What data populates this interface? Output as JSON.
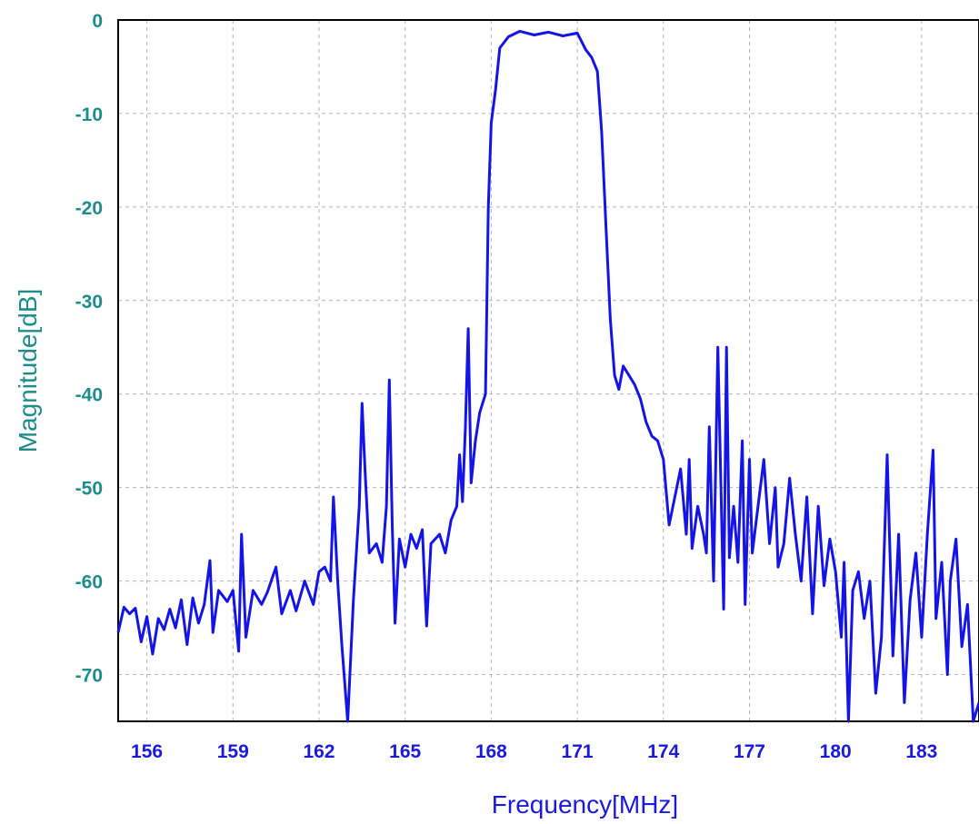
{
  "chart_data": {
    "type": "line",
    "title": "",
    "xlabel": "Frequency[MHz]",
    "ylabel": "Magnitude[dB]",
    "xlim": [
      155,
      185
    ],
    "ylim": [
      -75,
      0
    ],
    "xticks": [
      156,
      159,
      162,
      165,
      168,
      171,
      174,
      177,
      180,
      183
    ],
    "yticks": [
      0,
      -10,
      -20,
      -30,
      -40,
      -50,
      -60,
      -70
    ],
    "grid": true,
    "legend": "none",
    "colors": {
      "line": "#1414e6",
      "xtick": "#1a1adc",
      "ytick": "#1e8c8c",
      "grid": "#b4b4b4",
      "frame": "#000000"
    },
    "series": [
      {
        "values": [
          [
            155.0,
            -65.5
          ],
          [
            155.2,
            -62.8
          ],
          [
            155.4,
            -63.5
          ],
          [
            155.6,
            -62.9
          ],
          [
            155.8,
            -66.5
          ],
          [
            156.0,
            -63.8
          ],
          [
            156.2,
            -67.8
          ],
          [
            156.4,
            -64.0
          ],
          [
            156.6,
            -65.2
          ],
          [
            156.8,
            -63.0
          ],
          [
            157.0,
            -65.0
          ],
          [
            157.2,
            -62.0
          ],
          [
            157.4,
            -66.8
          ],
          [
            157.6,
            -61.8
          ],
          [
            157.8,
            -64.5
          ],
          [
            158.0,
            -62.5
          ],
          [
            158.2,
            -57.8
          ],
          [
            158.3,
            -65.5
          ],
          [
            158.5,
            -61.0
          ],
          [
            158.8,
            -62.2
          ],
          [
            159.0,
            -61.0
          ],
          [
            159.2,
            -67.5
          ],
          [
            159.3,
            -55.0
          ],
          [
            159.45,
            -66.0
          ],
          [
            159.7,
            -61.0
          ],
          [
            160.0,
            -62.5
          ],
          [
            160.2,
            -61.2
          ],
          [
            160.5,
            -58.5
          ],
          [
            160.7,
            -63.5
          ],
          [
            161.0,
            -61.0
          ],
          [
            161.2,
            -63.2
          ],
          [
            161.5,
            -60.0
          ],
          [
            161.8,
            -62.5
          ],
          [
            162.0,
            -59.0
          ],
          [
            162.2,
            -58.5
          ],
          [
            162.4,
            -60.0
          ],
          [
            162.5,
            -51.0
          ],
          [
            162.65,
            -60.0
          ],
          [
            162.8,
            -67.0
          ],
          [
            163.0,
            -76.0
          ],
          [
            163.2,
            -62.0
          ],
          [
            163.4,
            -52.0
          ],
          [
            163.5,
            -41.0
          ],
          [
            163.6,
            -48.0
          ],
          [
            163.75,
            -57.0
          ],
          [
            164.0,
            -56.0
          ],
          [
            164.2,
            -58.0
          ],
          [
            164.35,
            -52.0
          ],
          [
            164.45,
            -38.5
          ],
          [
            164.55,
            -54.0
          ],
          [
            164.65,
            -64.5
          ],
          [
            164.8,
            -55.5
          ],
          [
            165.0,
            -58.5
          ],
          [
            165.2,
            -55.0
          ],
          [
            165.4,
            -56.5
          ],
          [
            165.6,
            -54.5
          ],
          [
            165.75,
            -64.8
          ],
          [
            165.9,
            -56.0
          ],
          [
            166.2,
            -55.0
          ],
          [
            166.4,
            -57.0
          ],
          [
            166.6,
            -53.5
          ],
          [
            166.8,
            -52.0
          ],
          [
            166.9,
            -46.5
          ],
          [
            167.0,
            -51.5
          ],
          [
            167.1,
            -43.5
          ],
          [
            167.2,
            -33.0
          ],
          [
            167.3,
            -49.5
          ],
          [
            167.45,
            -45.0
          ],
          [
            167.6,
            -42.0
          ],
          [
            167.8,
            -40.0
          ],
          [
            167.9,
            -20.0
          ],
          [
            168.0,
            -11.0
          ],
          [
            168.15,
            -7.5
          ],
          [
            168.3,
            -3.0
          ],
          [
            168.6,
            -1.8
          ],
          [
            169.0,
            -1.2
          ],
          [
            169.5,
            -1.6
          ],
          [
            170.0,
            -1.3
          ],
          [
            170.5,
            -1.7
          ],
          [
            171.0,
            -1.4
          ],
          [
            171.3,
            -3.2
          ],
          [
            171.5,
            -4.0
          ],
          [
            171.7,
            -5.5
          ],
          [
            171.85,
            -12.0
          ],
          [
            172.0,
            -22.0
          ],
          [
            172.15,
            -32.0
          ],
          [
            172.3,
            -38.0
          ],
          [
            172.45,
            -39.5
          ],
          [
            172.6,
            -37.0
          ],
          [
            172.8,
            -38.0
          ],
          [
            173.0,
            -39.0
          ],
          [
            173.2,
            -40.5
          ],
          [
            173.4,
            -43.0
          ],
          [
            173.6,
            -44.5
          ],
          [
            173.8,
            -45.0
          ],
          [
            174.0,
            -47.0
          ],
          [
            174.2,
            -54.0
          ],
          [
            174.4,
            -51.0
          ],
          [
            174.6,
            -48.0
          ],
          [
            174.8,
            -55.0
          ],
          [
            174.9,
            -47.0
          ],
          [
            175.0,
            -56.5
          ],
          [
            175.2,
            -52.0
          ],
          [
            175.4,
            -55.0
          ],
          [
            175.5,
            -57.0
          ],
          [
            175.6,
            -43.5
          ],
          [
            175.75,
            -60.0
          ],
          [
            175.9,
            -35.0
          ],
          [
            176.0,
            -49.0
          ],
          [
            176.1,
            -63.0
          ],
          [
            176.2,
            -35.0
          ],
          [
            176.3,
            -57.5
          ],
          [
            176.45,
            -52.0
          ],
          [
            176.6,
            -58.0
          ],
          [
            176.75,
            -45.0
          ],
          [
            176.85,
            -62.5
          ],
          [
            177.0,
            -47.0
          ],
          [
            177.1,
            -57.0
          ],
          [
            177.3,
            -52.0
          ],
          [
            177.5,
            -47.0
          ],
          [
            177.7,
            -56.0
          ],
          [
            177.9,
            -50.0
          ],
          [
            178.0,
            -58.5
          ],
          [
            178.2,
            -56.0
          ],
          [
            178.4,
            -49.0
          ],
          [
            178.6,
            -55.0
          ],
          [
            178.8,
            -60.0
          ],
          [
            179.0,
            -51.0
          ],
          [
            179.2,
            -63.5
          ],
          [
            179.4,
            -52.0
          ],
          [
            179.6,
            -60.5
          ],
          [
            179.8,
            -55.5
          ],
          [
            180.0,
            -59.0
          ],
          [
            180.2,
            -66.0
          ],
          [
            180.3,
            -58.0
          ],
          [
            180.45,
            -75.0
          ],
          [
            180.6,
            -61.0
          ],
          [
            180.8,
            -59.0
          ],
          [
            181.0,
            -64.0
          ],
          [
            181.2,
            -60.0
          ],
          [
            181.4,
            -72.0
          ],
          [
            181.6,
            -66.0
          ],
          [
            181.8,
            -46.5
          ],
          [
            182.0,
            -68.0
          ],
          [
            182.2,
            -55.0
          ],
          [
            182.4,
            -73.0
          ],
          [
            182.6,
            -62.0
          ],
          [
            182.8,
            -57.0
          ],
          [
            183.0,
            -66.0
          ],
          [
            183.2,
            -55.0
          ],
          [
            183.4,
            -46.0
          ],
          [
            183.5,
            -64.0
          ],
          [
            183.7,
            -58.0
          ],
          [
            183.9,
            -70.0
          ],
          [
            184.0,
            -60.0
          ],
          [
            184.2,
            -55.5
          ],
          [
            184.4,
            -67.0
          ],
          [
            184.6,
            -62.5
          ],
          [
            184.8,
            -75.0
          ],
          [
            185.0,
            -73.0
          ]
        ]
      }
    ]
  }
}
